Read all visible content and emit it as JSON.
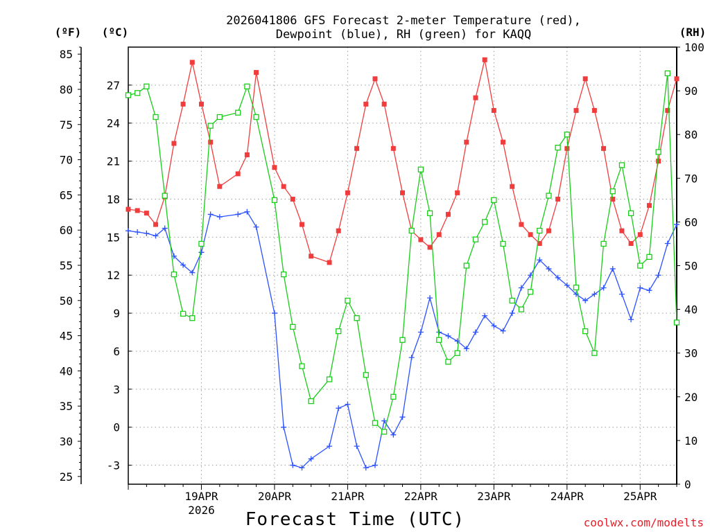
{
  "chart_data": {
    "type": "line",
    "title_lines": [
      "2026041806 GFS Forecast 2-meter Temperature (red),",
      "Dewpoint (blue), RH (green) for KAQQ"
    ],
    "xlabel": "Forecast Time (UTC)",
    "credit": "coolwx.com/modelts",
    "units": {
      "fahrenheit": "(ºF)",
      "celsius": "(ºC)",
      "rh": "(RH)"
    },
    "x_range_days": [
      0,
      7.5
    ],
    "x_ticks": [
      {
        "day": 1,
        "label": "19APR",
        "sublabel": "2026"
      },
      {
        "day": 2,
        "label": "20APR"
      },
      {
        "day": 3,
        "label": "21APR"
      },
      {
        "day": 4,
        "label": "22APR"
      },
      {
        "day": 5,
        "label": "23APR"
      },
      {
        "day": 6,
        "label": "24APR"
      },
      {
        "day": 7,
        "label": "25APR"
      }
    ],
    "celsius_axis": {
      "range": [
        -4.5,
        30
      ],
      "ticks": [
        -3,
        0,
        3,
        6,
        9,
        12,
        15,
        18,
        21,
        24,
        27
      ]
    },
    "fahrenheit_axis": {
      "ticks": [
        25,
        30,
        35,
        40,
        45,
        50,
        55,
        60,
        65,
        70,
        75,
        80,
        85
      ]
    },
    "rh_axis": {
      "range": [
        0,
        100
      ],
      "ticks": [
        0,
        10,
        20,
        30,
        40,
        50,
        60,
        70,
        80,
        90,
        100
      ]
    },
    "series": [
      {
        "name": "Temperature (°C)",
        "color": "#f03c3c",
        "marker": "filled-square",
        "axis": "celsius",
        "points": [
          [
            0,
            17.2
          ],
          [
            0.125,
            17.1
          ],
          [
            0.25,
            16.9
          ],
          [
            0.375,
            16.0
          ],
          [
            0.5,
            18.2
          ],
          [
            0.625,
            22.4
          ],
          [
            0.75,
            25.5
          ],
          [
            0.875,
            28.8
          ],
          [
            1.0,
            25.5
          ],
          [
            1.125,
            22.5
          ],
          [
            1.25,
            19.0
          ],
          [
            1.5,
            20.0
          ],
          [
            1.625,
            21.5
          ],
          [
            1.75,
            28.0
          ],
          [
            2.0,
            20.5
          ],
          [
            2.125,
            19.0
          ],
          [
            2.25,
            18.0
          ],
          [
            2.375,
            16.0
          ],
          [
            2.5,
            13.5
          ],
          [
            2.75,
            13.0
          ],
          [
            2.875,
            15.5
          ],
          [
            3.0,
            18.5
          ],
          [
            3.125,
            22.0
          ],
          [
            3.25,
            25.5
          ],
          [
            3.375,
            27.5
          ],
          [
            3.5,
            25.5
          ],
          [
            3.625,
            22.0
          ],
          [
            3.75,
            18.5
          ],
          [
            3.875,
            15.5
          ],
          [
            4.0,
            14.8
          ],
          [
            4.125,
            14.2
          ],
          [
            4.25,
            15.2
          ],
          [
            4.375,
            16.8
          ],
          [
            4.5,
            18.5
          ],
          [
            4.625,
            22.5
          ],
          [
            4.75,
            26.0
          ],
          [
            4.875,
            29.0
          ],
          [
            5.0,
            25.0
          ],
          [
            5.125,
            22.5
          ],
          [
            5.25,
            19.0
          ],
          [
            5.375,
            16.0
          ],
          [
            5.5,
            15.2
          ],
          [
            5.625,
            14.5
          ],
          [
            5.75,
            15.5
          ],
          [
            5.875,
            18.0
          ],
          [
            6.0,
            22.0
          ],
          [
            6.125,
            25.0
          ],
          [
            6.25,
            27.5
          ],
          [
            6.375,
            25.0
          ],
          [
            6.5,
            22.0
          ],
          [
            6.625,
            18.0
          ],
          [
            6.75,
            15.5
          ],
          [
            6.875,
            14.5
          ],
          [
            7.0,
            15.2
          ],
          [
            7.125,
            17.5
          ],
          [
            7.25,
            21.0
          ],
          [
            7.375,
            25.0
          ],
          [
            7.5,
            27.5
          ]
        ]
      },
      {
        "name": "Dewpoint (°C)",
        "color": "#2a50ff",
        "marker": "plus",
        "axis": "celsius",
        "points": [
          [
            0,
            15.5
          ],
          [
            0.125,
            15.4
          ],
          [
            0.25,
            15.3
          ],
          [
            0.375,
            15.1
          ],
          [
            0.5,
            15.7
          ],
          [
            0.625,
            13.5
          ],
          [
            0.75,
            12.8
          ],
          [
            0.875,
            12.2
          ],
          [
            1.0,
            13.8
          ],
          [
            1.125,
            16.8
          ],
          [
            1.25,
            16.6
          ],
          [
            1.5,
            16.8
          ],
          [
            1.625,
            17.0
          ],
          [
            1.75,
            15.8
          ],
          [
            2.0,
            9.0
          ],
          [
            2.125,
            0.0
          ],
          [
            2.25,
            -3.0
          ],
          [
            2.375,
            -3.2
          ],
          [
            2.5,
            -2.5
          ],
          [
            2.75,
            -1.5
          ],
          [
            2.875,
            1.5
          ],
          [
            3.0,
            1.8
          ],
          [
            3.125,
            -1.5
          ],
          [
            3.25,
            -3.2
          ],
          [
            3.375,
            -3.0
          ],
          [
            3.5,
            0.5
          ],
          [
            3.625,
            -0.6
          ],
          [
            3.75,
            0.8
          ],
          [
            3.875,
            5.5
          ],
          [
            4.0,
            7.5
          ],
          [
            4.125,
            10.2
          ],
          [
            4.25,
            7.5
          ],
          [
            4.375,
            7.2
          ],
          [
            4.5,
            6.8
          ],
          [
            4.625,
            6.2
          ],
          [
            4.75,
            7.5
          ],
          [
            4.875,
            8.8
          ],
          [
            5.0,
            8.0
          ],
          [
            5.125,
            7.6
          ],
          [
            5.25,
            9.0
          ],
          [
            5.375,
            11.0
          ],
          [
            5.5,
            12.0
          ],
          [
            5.625,
            13.2
          ],
          [
            5.75,
            12.5
          ],
          [
            5.875,
            11.8
          ],
          [
            6.0,
            11.2
          ],
          [
            6.125,
            10.5
          ],
          [
            6.25,
            10.0
          ],
          [
            6.375,
            10.5
          ],
          [
            6.5,
            11.0
          ],
          [
            6.625,
            12.5
          ],
          [
            6.75,
            10.5
          ],
          [
            6.875,
            8.5
          ],
          [
            7.0,
            11.0
          ],
          [
            7.125,
            10.8
          ],
          [
            7.25,
            12.0
          ],
          [
            7.375,
            14.5
          ],
          [
            7.5,
            16.0
          ]
        ]
      },
      {
        "name": "Relative Humidity (%)",
        "color": "#18cc18",
        "marker": "open-square",
        "axis": "rh",
        "points": [
          [
            0,
            89
          ],
          [
            0.125,
            89.5
          ],
          [
            0.25,
            91
          ],
          [
            0.375,
            84
          ],
          [
            0.5,
            66
          ],
          [
            0.625,
            48
          ],
          [
            0.75,
            39
          ],
          [
            0.875,
            38
          ],
          [
            1.0,
            55
          ],
          [
            1.125,
            82
          ],
          [
            1.25,
            84
          ],
          [
            1.5,
            85
          ],
          [
            1.625,
            91
          ],
          [
            1.75,
            84
          ],
          [
            2.0,
            65
          ],
          [
            2.125,
            48
          ],
          [
            2.25,
            36
          ],
          [
            2.375,
            27
          ],
          [
            2.5,
            19
          ],
          [
            2.75,
            24
          ],
          [
            2.875,
            35
          ],
          [
            3.0,
            42
          ],
          [
            3.125,
            38
          ],
          [
            3.25,
            25
          ],
          [
            3.375,
            14
          ],
          [
            3.5,
            12
          ],
          [
            3.625,
            20
          ],
          [
            3.75,
            33
          ],
          [
            3.875,
            58
          ],
          [
            4.0,
            72
          ],
          [
            4.125,
            62
          ],
          [
            4.25,
            33
          ],
          [
            4.375,
            28
          ],
          [
            4.5,
            30
          ],
          [
            4.625,
            50
          ],
          [
            4.75,
            56
          ],
          [
            4.875,
            60
          ],
          [
            5.0,
            65
          ],
          [
            5.125,
            55
          ],
          [
            5.25,
            42
          ],
          [
            5.375,
            40
          ],
          [
            5.5,
            44
          ],
          [
            5.625,
            58
          ],
          [
            5.75,
            66
          ],
          [
            5.875,
            77
          ],
          [
            6.0,
            80
          ],
          [
            6.125,
            45
          ],
          [
            6.25,
            35
          ],
          [
            6.375,
            30
          ],
          [
            6.5,
            55
          ],
          [
            6.625,
            67
          ],
          [
            6.75,
            73
          ],
          [
            6.875,
            62
          ],
          [
            7.0,
            50
          ],
          [
            7.125,
            52
          ],
          [
            7.25,
            76
          ],
          [
            7.375,
            94
          ],
          [
            7.5,
            37
          ]
        ]
      }
    ]
  }
}
